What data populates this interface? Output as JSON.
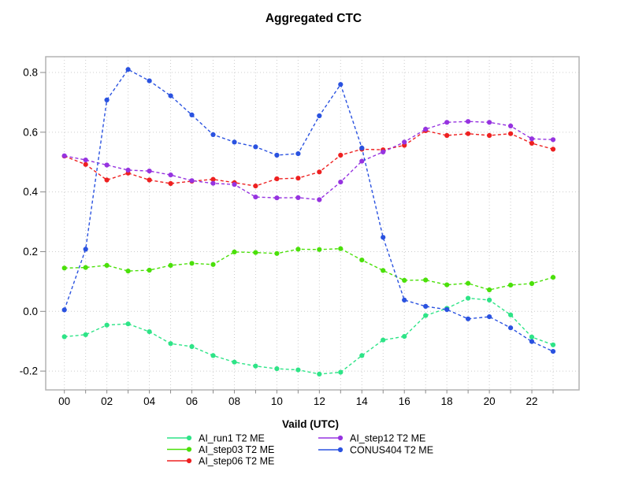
{
  "title": "Aggregated CTC",
  "axes": {
    "x_label": "Vaild (UTC)",
    "x_tick_labels": [
      "00",
      "02",
      "04",
      "06",
      "08",
      "10",
      "12",
      "14",
      "16",
      "18",
      "20",
      "22"
    ],
    "y_tick_labels": [
      "0.8",
      "0.6",
      "0.4",
      "0.2",
      "0.0",
      "-0.2"
    ],
    "y_tick_values": [
      0.8,
      0.6,
      0.4,
      0.2,
      0.0,
      -0.2
    ]
  },
  "colors": {
    "frame": "#b3b3b3",
    "grid": "#cccccc",
    "tick": "#8a8a8a",
    "text": "#000000"
  },
  "chart_data": {
    "type": "line",
    "title": "Aggregated CTC",
    "xlabel": "Vaild (UTC)",
    "ylabel": "",
    "x": [
      0,
      1,
      2,
      3,
      4,
      5,
      6,
      7,
      8,
      9,
      10,
      11,
      12,
      13,
      14,
      15,
      16,
      17,
      18,
      19,
      20,
      21,
      22,
      23
    ],
    "x_tick_labels": [
      "00",
      "02",
      "04",
      "06",
      "08",
      "10",
      "12",
      "14",
      "16",
      "18",
      "20",
      "22"
    ],
    "ylim": [
      -0.26,
      0.85
    ],
    "y_major_ticks": [
      0.8,
      0.6,
      0.4,
      0.2,
      0.0,
      -0.2
    ],
    "grid": true,
    "line_style": "dashed",
    "marker": "circle",
    "legend_position": "bottom",
    "legend_columns": 2,
    "series": [
      {
        "name": "AI_run1 T2 ME",
        "color": "#2ee487",
        "values": [
          -0.085,
          -0.078,
          -0.046,
          -0.042,
          -0.068,
          -0.108,
          -0.118,
          -0.148,
          -0.17,
          -0.183,
          -0.192,
          -0.196,
          -0.21,
          -0.204,
          -0.148,
          -0.096,
          -0.084,
          -0.014,
          0.01,
          0.044,
          0.038,
          -0.012,
          -0.086,
          -0.112
        ]
      },
      {
        "name": "AI_step03 T2 ME",
        "color": "#4be00a",
        "values": [
          0.145,
          0.147,
          0.154,
          0.135,
          0.138,
          0.154,
          0.161,
          0.157,
          0.199,
          0.197,
          0.194,
          0.208,
          0.207,
          0.21,
          0.172,
          0.137,
          0.104,
          0.105,
          0.089,
          0.094,
          0.072,
          0.088,
          0.093,
          0.114
        ]
      },
      {
        "name": "AI_step06 T2 ME",
        "color": "#ee2020",
        "values": [
          0.52,
          0.492,
          0.44,
          0.463,
          0.44,
          0.428,
          0.436,
          0.442,
          0.431,
          0.42,
          0.444,
          0.446,
          0.467,
          0.523,
          0.543,
          0.541,
          0.556,
          0.605,
          0.589,
          0.595,
          0.589,
          0.595,
          0.563,
          0.543
        ]
      },
      {
        "name": "AI_step12 T2 ME",
        "color": "#9633e0",
        "values": [
          0.521,
          0.507,
          0.49,
          0.473,
          0.47,
          0.457,
          0.438,
          0.429,
          0.425,
          0.383,
          0.38,
          0.381,
          0.374,
          0.433,
          0.503,
          0.534,
          0.567,
          0.61,
          0.633,
          0.636,
          0.633,
          0.621,
          0.578,
          0.575
        ]
      },
      {
        "name": "CONUS404 T2 ME",
        "color": "#2a52e0",
        "values": [
          0.005,
          0.208,
          0.708,
          0.81,
          0.772,
          0.722,
          0.658,
          0.592,
          0.567,
          0.551,
          0.523,
          0.528,
          0.655,
          0.76,
          0.547,
          0.248,
          0.038,
          0.017,
          0.006,
          -0.025,
          -0.018,
          -0.055,
          -0.101,
          -0.134
        ]
      }
    ]
  }
}
